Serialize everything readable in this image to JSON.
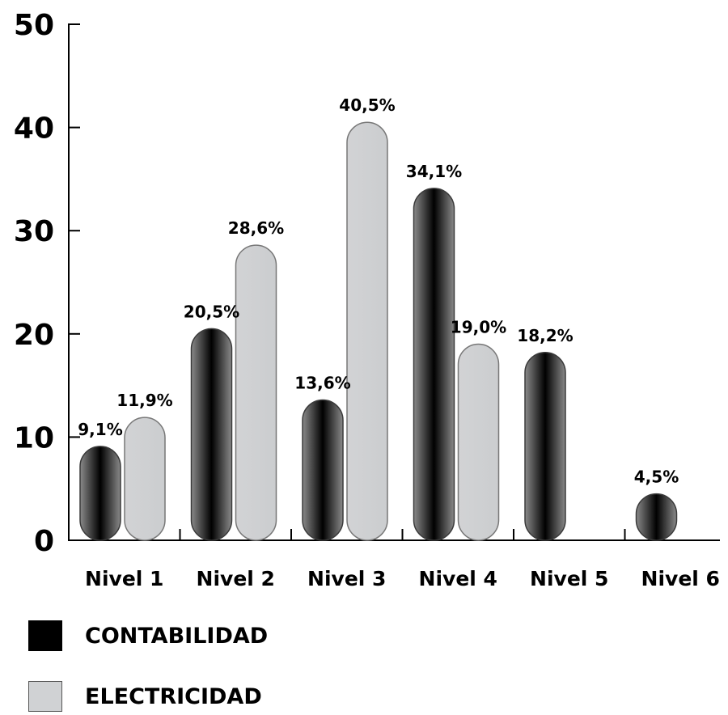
{
  "chart_data": {
    "type": "bar",
    "categories": [
      "Nivel 1",
      "Nivel 2",
      "Nivel 3",
      "Nivel 4",
      "Nivel 5",
      "Nivel 6"
    ],
    "series": [
      {
        "name": "CONTABILIDAD",
        "color": "#000000",
        "values": [
          9.1,
          20.5,
          13.6,
          34.1,
          18.2,
          4.5
        ],
        "labels": [
          "9,1%",
          "20,5%",
          "13,6%",
          "34,1%",
          "18,2%",
          "4,5%"
        ]
      },
      {
        "name": "ELECTRICIDAD",
        "color": "#cfd1d3",
        "values": [
          11.9,
          28.6,
          40.5,
          19.0,
          null,
          null
        ],
        "labels": [
          "11,9%",
          "28,6%",
          "40,5%",
          "19,0%",
          null,
          null
        ]
      }
    ],
    "ylim": [
      0,
      50
    ],
    "yticks": [
      0,
      10,
      20,
      30,
      40,
      50
    ],
    "grid": false,
    "legend_position": "bottom-left"
  }
}
